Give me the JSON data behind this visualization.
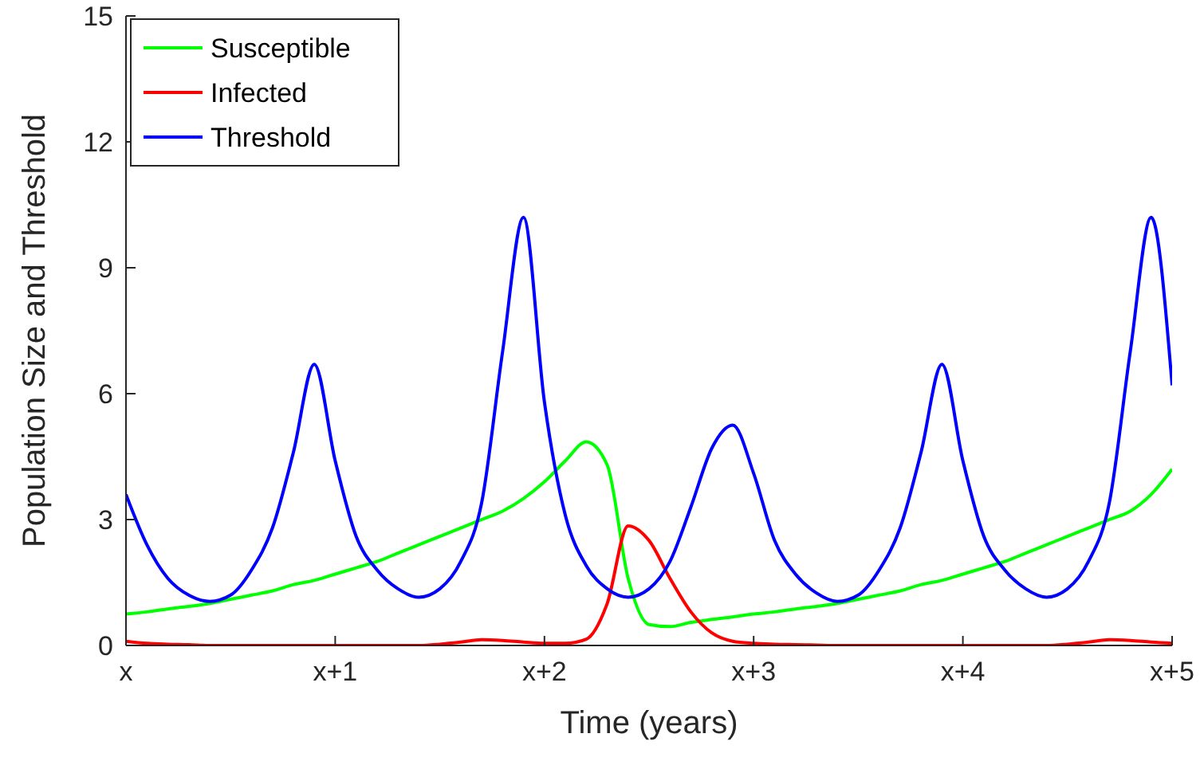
{
  "chart_data": {
    "type": "line",
    "xlabel": "Time (years)",
    "ylabel": "Population Size and Threshold",
    "ylim": [
      0,
      15
    ],
    "categories": [
      "x",
      null,
      null,
      null,
      null,
      null,
      null,
      null,
      null,
      null,
      "x+1",
      null,
      null,
      null,
      null,
      null,
      null,
      null,
      null,
      null,
      "x+2",
      null,
      null,
      null,
      null,
      null,
      null,
      null,
      null,
      null,
      "x+3",
      null,
      null,
      null,
      null,
      null,
      null,
      null,
      null,
      null,
      "x+4",
      null,
      null,
      null,
      null,
      null,
      null,
      null,
      null,
      null,
      "x+5"
    ],
    "yticks": [
      0,
      3,
      6,
      9,
      12,
      15
    ],
    "grid": false,
    "legend": "top left",
    "line_style": "solid",
    "series": [
      {
        "name": "Susceptible",
        "color": "#00ff00",
        "values": [
          0.75,
          0.8,
          0.87,
          0.93,
          1.0,
          1.1,
          1.2,
          1.3,
          1.45,
          1.55,
          1.7,
          1.85,
          2.0,
          2.2,
          2.4,
          2.6,
          2.8,
          3.0,
          3.2,
          3.5,
          3.9,
          4.4,
          4.85,
          4.3,
          1.6,
          0.5,
          0.45,
          0.55,
          0.62,
          0.68,
          0.75,
          0.8,
          0.87,
          0.93,
          1.0,
          1.1,
          1.2,
          1.3,
          1.45,
          1.55,
          1.7,
          1.85,
          2.0,
          2.2,
          2.4,
          2.6,
          2.8,
          3.0,
          3.2,
          3.6,
          4.2
        ]
      },
      {
        "name": "Infected",
        "color": "#ff0000",
        "values": [
          0.1,
          0.05,
          0.03,
          0.02,
          0,
          0,
          0,
          0,
          0,
          0,
          0,
          0,
          0,
          0,
          0,
          0.03,
          0.08,
          0.14,
          0.12,
          0.08,
          0.05,
          0.05,
          0.15,
          1.0,
          2.85,
          2.5,
          1.6,
          0.8,
          0.3,
          0.1,
          0.05,
          0.03,
          0.02,
          0.01,
          0,
          0,
          0,
          0,
          0,
          0,
          0,
          0,
          0,
          0,
          0,
          0.03,
          0.08,
          0.14,
          0.12,
          0.08,
          0.05
        ]
      },
      {
        "name": "Threshold",
        "color": "#0000ff",
        "values": [
          3.6,
          2.4,
          1.6,
          1.2,
          1.05,
          1.2,
          1.8,
          2.8,
          4.6,
          6.7,
          4.4,
          2.6,
          1.8,
          1.35,
          1.15,
          1.35,
          2.0,
          3.4,
          7.0,
          10.2,
          5.8,
          3.1,
          1.9,
          1.35,
          1.15,
          1.35,
          2.0,
          3.3,
          4.7,
          5.25,
          4.1,
          2.5,
          1.7,
          1.25,
          1.05,
          1.2,
          1.8,
          2.8,
          4.6,
          6.7,
          4.4,
          2.6,
          1.8,
          1.35,
          1.15,
          1.35,
          2.0,
          3.4,
          7.0,
          10.2,
          6.2
        ]
      }
    ]
  }
}
